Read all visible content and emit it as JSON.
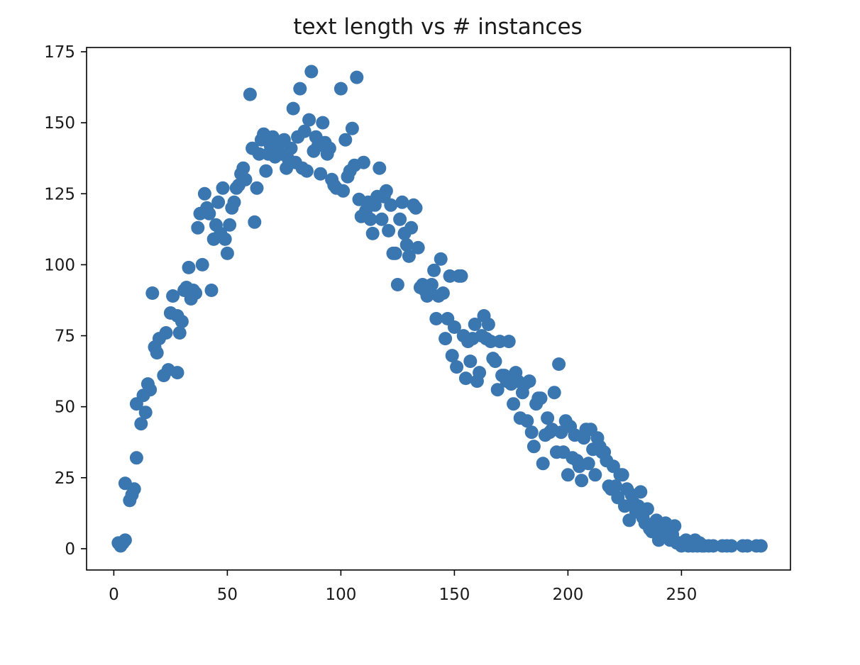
{
  "chart_data": {
    "type": "scatter",
    "title": "text length vs # instances",
    "xlabel": "",
    "ylabel": "",
    "xlim": [
      -12,
      298
    ],
    "ylim": [
      -7.5,
      176.5
    ],
    "x_ticks": [
      0,
      50,
      100,
      150,
      200,
      250
    ],
    "y_ticks": [
      0,
      25,
      50,
      75,
      100,
      125,
      150,
      175
    ],
    "grid": false,
    "legend": "none",
    "marker_color": "#3a76b0",
    "series": [
      {
        "points": [
          [
            2,
            2
          ],
          [
            3,
            1
          ],
          [
            4,
            2
          ],
          [
            5,
            3
          ],
          [
            5,
            23
          ],
          [
            7,
            17
          ],
          [
            8,
            19
          ],
          [
            9,
            21
          ],
          [
            10,
            32
          ],
          [
            10,
            51
          ],
          [
            12,
            44
          ],
          [
            13,
            54
          ],
          [
            14,
            48
          ],
          [
            15,
            58
          ],
          [
            16,
            56
          ],
          [
            17,
            90
          ],
          [
            18,
            71
          ],
          [
            19,
            69
          ],
          [
            20,
            74
          ],
          [
            22,
            61
          ],
          [
            23,
            76
          ],
          [
            24,
            63
          ],
          [
            25,
            83
          ],
          [
            26,
            89
          ],
          [
            28,
            82
          ],
          [
            28,
            62
          ],
          [
            29,
            76
          ],
          [
            30,
            80
          ],
          [
            31,
            91
          ],
          [
            32,
            92
          ],
          [
            33,
            99
          ],
          [
            34,
            88
          ],
          [
            35,
            91
          ],
          [
            36,
            90
          ],
          [
            37,
            113
          ],
          [
            38,
            118
          ],
          [
            39,
            100
          ],
          [
            40,
            125
          ],
          [
            41,
            120
          ],
          [
            42,
            118
          ],
          [
            43,
            91
          ],
          [
            44,
            109
          ],
          [
            45,
            114
          ],
          [
            46,
            122
          ],
          [
            47,
            111
          ],
          [
            48,
            127
          ],
          [
            49,
            109
          ],
          [
            50,
            104
          ],
          [
            51,
            114
          ],
          [
            52,
            120
          ],
          [
            53,
            122
          ],
          [
            54,
            127
          ],
          [
            55,
            128
          ],
          [
            56,
            132
          ],
          [
            57,
            134
          ],
          [
            58,
            130
          ],
          [
            60,
            160
          ],
          [
            61,
            141
          ],
          [
            62,
            115
          ],
          [
            63,
            127
          ],
          [
            64,
            139
          ],
          [
            65,
            144
          ],
          [
            66,
            146
          ],
          [
            67,
            133
          ],
          [
            68,
            139
          ],
          [
            69,
            142
          ],
          [
            70,
            145
          ],
          [
            71,
            138
          ],
          [
            72,
            140
          ],
          [
            73,
            143
          ],
          [
            74,
            139
          ],
          [
            75,
            144
          ],
          [
            76,
            134
          ],
          [
            77,
            137
          ],
          [
            78,
            141
          ],
          [
            79,
            155
          ],
          [
            80,
            136
          ],
          [
            81,
            145
          ],
          [
            82,
            162
          ],
          [
            83,
            134
          ],
          [
            84,
            147
          ],
          [
            85,
            133
          ],
          [
            86,
            151
          ],
          [
            87,
            168
          ],
          [
            88,
            140
          ],
          [
            89,
            145
          ],
          [
            90,
            142
          ],
          [
            91,
            132
          ],
          [
            92,
            150
          ],
          [
            93,
            143
          ],
          [
            94,
            139
          ],
          [
            95,
            141
          ],
          [
            96,
            130
          ],
          [
            97,
            128
          ],
          [
            98,
            127
          ],
          [
            100,
            162
          ],
          [
            101,
            126
          ],
          [
            102,
            144
          ],
          [
            103,
            131
          ],
          [
            104,
            133
          ],
          [
            105,
            148
          ],
          [
            106,
            135
          ],
          [
            107,
            166
          ],
          [
            108,
            123
          ],
          [
            109,
            117
          ],
          [
            110,
            136
          ],
          [
            111,
            119
          ],
          [
            112,
            122
          ],
          [
            113,
            116
          ],
          [
            114,
            111
          ],
          [
            115,
            121
          ],
          [
            116,
            124
          ],
          [
            117,
            134
          ],
          [
            118,
            116
          ],
          [
            119,
            124
          ],
          [
            120,
            126
          ],
          [
            121,
            112
          ],
          [
            122,
            121
          ],
          [
            123,
            104
          ],
          [
            124,
            104
          ],
          [
            125,
            93
          ],
          [
            126,
            116
          ],
          [
            127,
            122
          ],
          [
            128,
            111
          ],
          [
            129,
            107
          ],
          [
            130,
            103
          ],
          [
            131,
            113
          ],
          [
            132,
            121
          ],
          [
            133,
            120
          ],
          [
            134,
            106
          ],
          [
            135,
            92
          ],
          [
            136,
            93
          ],
          [
            137,
            91
          ],
          [
            138,
            89
          ],
          [
            139,
            91
          ],
          [
            140,
            93
          ],
          [
            141,
            98
          ],
          [
            142,
            81
          ],
          [
            143,
            89
          ],
          [
            144,
            102
          ],
          [
            145,
            90
          ],
          [
            146,
            74
          ],
          [
            147,
            81
          ],
          [
            148,
            96
          ],
          [
            149,
            68
          ],
          [
            150,
            78
          ],
          [
            151,
            64
          ],
          [
            152,
            96
          ],
          [
            153,
            96
          ],
          [
            154,
            75
          ],
          [
            155,
            60
          ],
          [
            156,
            73
          ],
          [
            157,
            66
          ],
          [
            158,
            74
          ],
          [
            159,
            79
          ],
          [
            160,
            59
          ],
          [
            161,
            62
          ],
          [
            162,
            75
          ],
          [
            163,
            82
          ],
          [
            164,
            74
          ],
          [
            165,
            79
          ],
          [
            166,
            73
          ],
          [
            167,
            67
          ],
          [
            168,
            66
          ],
          [
            169,
            56
          ],
          [
            170,
            73
          ],
          [
            171,
            61
          ],
          [
            172,
            61
          ],
          [
            173,
            59
          ],
          [
            174,
            73
          ],
          [
            175,
            58
          ],
          [
            176,
            51
          ],
          [
            177,
            62
          ],
          [
            178,
            59
          ],
          [
            179,
            46
          ],
          [
            180,
            55
          ],
          [
            181,
            58
          ],
          [
            182,
            45
          ],
          [
            183,
            59
          ],
          [
            184,
            41
          ],
          [
            185,
            36
          ],
          [
            186,
            51
          ],
          [
            187,
            53
          ],
          [
            188,
            53
          ],
          [
            189,
            30
          ],
          [
            190,
            40
          ],
          [
            191,
            46
          ],
          [
            192,
            41
          ],
          [
            193,
            42
          ],
          [
            194,
            55
          ],
          [
            195,
            34
          ],
          [
            196,
            65
          ],
          [
            197,
            41
          ],
          [
            198,
            34
          ],
          [
            199,
            45
          ],
          [
            200,
            26
          ],
          [
            201,
            43
          ],
          [
            202,
            32
          ],
          [
            203,
            40
          ],
          [
            204,
            31
          ],
          [
            205,
            29
          ],
          [
            206,
            24
          ],
          [
            207,
            39
          ],
          [
            208,
            42
          ],
          [
            209,
            30
          ],
          [
            210,
            42
          ],
          [
            211,
            35
          ],
          [
            212,
            26
          ],
          [
            213,
            39
          ],
          [
            214,
            36
          ],
          [
            215,
            34
          ],
          [
            216,
            34
          ],
          [
            217,
            31
          ],
          [
            218,
            22
          ],
          [
            219,
            21
          ],
          [
            220,
            29
          ],
          [
            221,
            22
          ],
          [
            222,
            18
          ],
          [
            223,
            26
          ],
          [
            224,
            26
          ],
          [
            225,
            15
          ],
          [
            226,
            21
          ],
          [
            227,
            10
          ],
          [
            228,
            19
          ],
          [
            229,
            16
          ],
          [
            230,
            13
          ],
          [
            231,
            15
          ],
          [
            232,
            20
          ],
          [
            233,
            11
          ],
          [
            234,
            9
          ],
          [
            235,
            14
          ],
          [
            236,
            7
          ],
          [
            237,
            6
          ],
          [
            238,
            9
          ],
          [
            239,
            10
          ],
          [
            240,
            3
          ],
          [
            241,
            5
          ],
          [
            242,
            8
          ],
          [
            243,
            9
          ],
          [
            244,
            6
          ],
          [
            245,
            3
          ],
          [
            246,
            5
          ],
          [
            247,
            8
          ],
          [
            248,
            2
          ],
          [
            249,
            2
          ],
          [
            250,
            1
          ],
          [
            251,
            2
          ],
          [
            252,
            3
          ],
          [
            253,
            1
          ],
          [
            254,
            2
          ],
          [
            255,
            1
          ],
          [
            256,
            3
          ],
          [
            257,
            1
          ],
          [
            258,
            2
          ],
          [
            259,
            1
          ],
          [
            260,
            1
          ],
          [
            262,
            1
          ],
          [
            264,
            1
          ],
          [
            268,
            1
          ],
          [
            270,
            1
          ],
          [
            272,
            1
          ],
          [
            277,
            1
          ],
          [
            279,
            1
          ],
          [
            283,
            1
          ],
          [
            285,
            1
          ]
        ]
      }
    ]
  }
}
